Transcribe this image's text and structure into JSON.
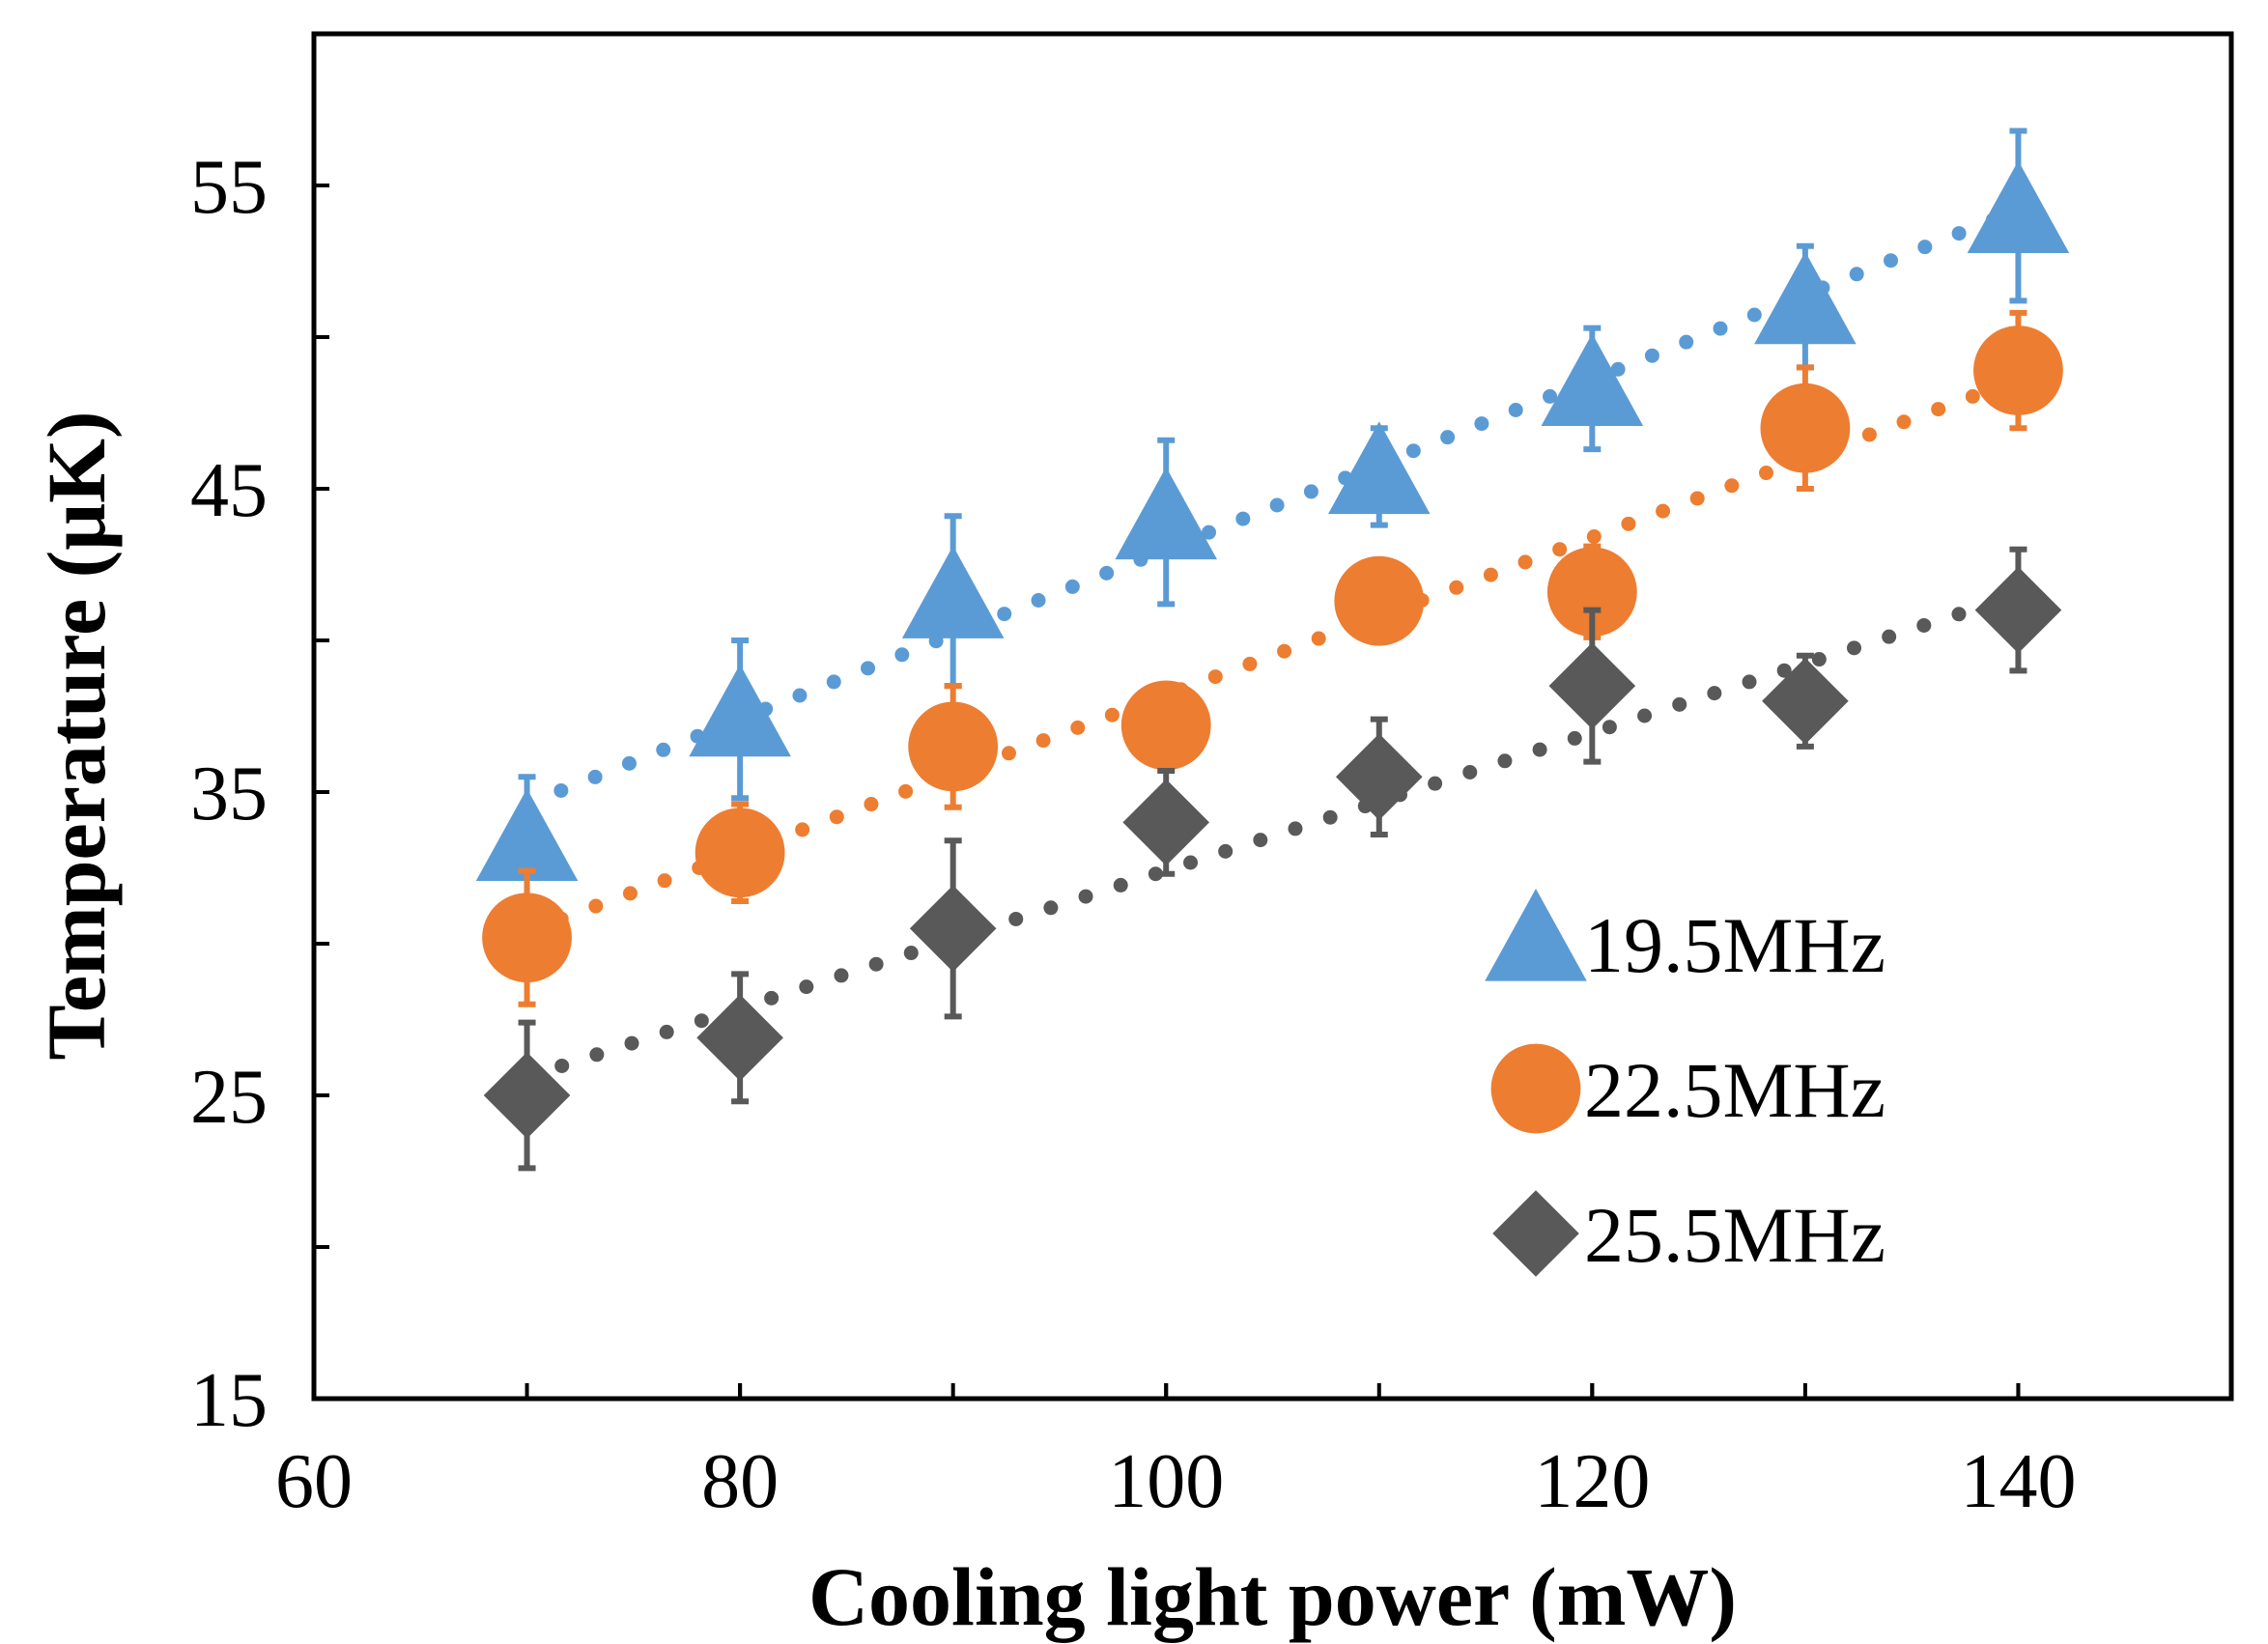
{
  "chart_data": {
    "type": "scatter",
    "title": "",
    "xlabel": "Cooling light power (mW)",
    "ylabel": "Temperature (μK)",
    "xlim": [
      60,
      150
    ],
    "ylim": [
      15,
      60
    ],
    "x_ticks": [
      60,
      80,
      100,
      120,
      140
    ],
    "x_tick_labels": [
      "60",
      "80",
      "100",
      "120",
      "140"
    ],
    "y_ticks": [
      15,
      25,
      35,
      45,
      55
    ],
    "y_tick_labels": [
      "15",
      "25",
      "35",
      "45",
      "55"
    ],
    "y_minor_ticks": [
      20,
      30,
      40,
      50
    ],
    "grid": false,
    "legend_position": "right-center",
    "trendline": "linear, dotted",
    "series": [
      {
        "name": "19.5MHz",
        "marker": "triangle",
        "color": "#5B9BD5",
        "x": [
          70,
          80,
          90,
          100,
          110,
          120,
          130,
          140
        ],
        "y": [
          33.3,
          37.4,
          41.3,
          43.9,
          45.4,
          48.3,
          51.0,
          54.0
        ],
        "err": [
          2.2,
          2.6,
          2.8,
          2.7,
          1.6,
          2.0,
          2.0,
          2.8
        ],
        "trend": [
          [
            70,
            34.6
          ],
          [
            140,
            54.2
          ]
        ]
      },
      {
        "name": "22.5MHz",
        "marker": "circle",
        "color": "#ED7D31",
        "x": [
          70,
          80,
          90,
          100,
          110,
          120,
          130,
          140
        ],
        "y": [
          30.2,
          33.0,
          36.5,
          37.2,
          41.3,
          41.6,
          47.0,
          48.9
        ],
        "err": [
          2.2,
          1.6,
          2.0,
          1.2,
          1.3,
          1.5,
          2.0,
          1.9
        ],
        "trend": [
          [
            70,
            30.4
          ],
          [
            140,
            48.6
          ]
        ]
      },
      {
        "name": "25.5MHz",
        "marker": "diamond",
        "color": "#595959",
        "x": [
          70,
          80,
          90,
          100,
          110,
          120,
          130,
          140
        ],
        "y": [
          25.0,
          26.9,
          30.5,
          34.0,
          35.5,
          38.5,
          38.0,
          41.0
        ],
        "err": [
          2.4,
          2.1,
          2.9,
          1.7,
          1.9,
          2.5,
          1.5,
          2.0
        ],
        "trend": [
          [
            70,
            25.6
          ],
          [
            140,
            41.5
          ]
        ]
      }
    ]
  }
}
